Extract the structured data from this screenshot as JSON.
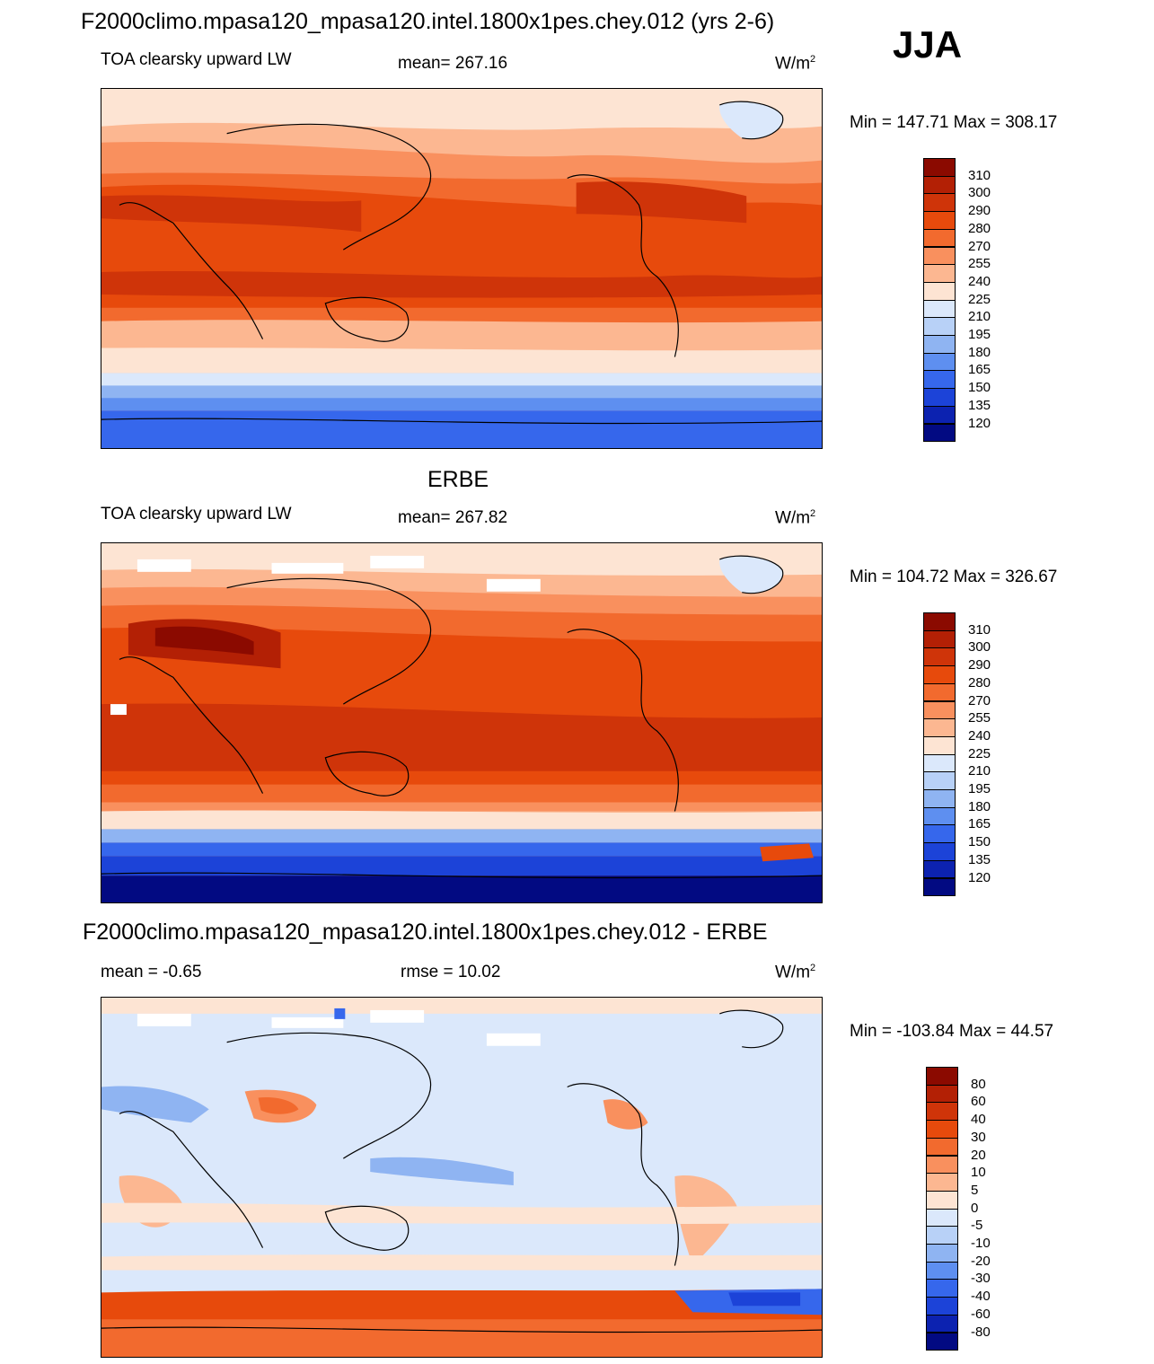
{
  "header": {
    "title": "F2000climo.mpasa120_mpasa120.intel.1800x1pes.chey.012 (yrs 2-6)",
    "season": "JJA"
  },
  "panel1": {
    "variable": "TOA clearsky upward LW",
    "stat": "mean= 267.16",
    "units_base": "W/m",
    "units_sup": "2",
    "range": "Min = 147.71 Max = 308.17"
  },
  "panel2": {
    "title": "ERBE",
    "variable": "TOA clearsky upward LW",
    "stat": "mean= 267.82",
    "units_base": "W/m",
    "units_sup": "2",
    "range": "Min = 104.72 Max = 326.67"
  },
  "panel3": {
    "title": "F2000climo.mpasa120_mpasa120.intel.1800x1pes.chey.012 - ERBE",
    "stat_left": "mean =  -0.65",
    "stat_center": "rmse =  10.02",
    "units_base": "W/m",
    "units_sup": "2",
    "range": "Min = -103.84 Max =  44.57"
  },
  "colorbar_abs": {
    "labels": [
      "310",
      "300",
      "290",
      "280",
      "270",
      "255",
      "240",
      "225",
      "210",
      "195",
      "180",
      "165",
      "150",
      "135",
      "120"
    ],
    "colors": [
      "#8b0a00",
      "#b32005",
      "#cf3409",
      "#e74a0c",
      "#f26a2e",
      "#f9905e",
      "#fcb791",
      "#fde4d3",
      "#dbe8fb",
      "#b8d1f7",
      "#8fb4f2",
      "#5e8ff0",
      "#3667ec",
      "#1c43d8",
      "#0c22b0",
      "#020a82"
    ]
  },
  "colorbar_diff": {
    "labels": [
      "80",
      "60",
      "40",
      "30",
      "20",
      "10",
      "5",
      "0",
      "-5",
      "-10",
      "-20",
      "-30",
      "-40",
      "-60",
      "-80"
    ],
    "colors": [
      "#8b0a00",
      "#b32005",
      "#cf3409",
      "#e74a0c",
      "#f26a2e",
      "#f9905e",
      "#fcb791",
      "#fde4d3",
      "#dbe8fb",
      "#b8d1f7",
      "#8fb4f2",
      "#5e8ff0",
      "#3667ec",
      "#1c43d8",
      "#0c22b0",
      "#020a82"
    ]
  },
  "chart_data": [
    {
      "type": "heatmap",
      "title": "TOA clearsky upward LW",
      "subtitle": "F2000climo.mpasa120_mpasa120.intel.1800x1pes.chey.012 (yrs 2-6)",
      "season": "JJA",
      "mean": 267.16,
      "min": 147.71,
      "max": 308.17,
      "units": "W/m2",
      "levels": [
        120,
        135,
        150,
        165,
        180,
        195,
        210,
        225,
        240,
        255,
        270,
        280,
        290,
        300,
        310
      ]
    },
    {
      "type": "heatmap",
      "title": "ERBE",
      "subtitle": "TOA clearsky upward LW",
      "mean": 267.82,
      "min": 104.72,
      "max": 326.67,
      "units": "W/m2",
      "levels": [
        120,
        135,
        150,
        165,
        180,
        195,
        210,
        225,
        240,
        255,
        270,
        280,
        290,
        300,
        310
      ]
    },
    {
      "type": "heatmap",
      "title": "F2000climo.mpasa120_mpasa120.intel.1800x1pes.chey.012 - ERBE",
      "mean": -0.65,
      "rmse": 10.02,
      "min": -103.84,
      "max": 44.57,
      "units": "W/m2",
      "levels": [
        -80,
        -60,
        -40,
        -30,
        -20,
        -10,
        -5,
        0,
        5,
        10,
        20,
        30,
        40,
        60,
        80
      ]
    }
  ]
}
